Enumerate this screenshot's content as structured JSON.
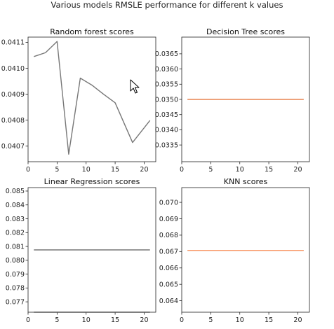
{
  "figure": {
    "suptitle": "Various models RMSLE performance for different k values"
  },
  "chart_data": [
    {
      "type": "line",
      "title": "Random forest scores",
      "xlabel": "",
      "ylabel": "",
      "xlim": [
        0,
        22
      ],
      "ylim": [
        0.04064,
        0.04112
      ],
      "xticks": [
        0,
        5,
        10,
        15,
        20
      ],
      "yticks": [
        0.0407,
        0.0408,
        0.0409,
        0.041,
        0.0411
      ],
      "ytick_labels": [
        "0.0407",
        "0.0408",
        "0.0409",
        "0.0410",
        "0.0411"
      ],
      "grid": false,
      "series": [
        {
          "color": "#777777",
          "x": [
            1,
            3,
            5,
            7,
            9,
            11,
            13,
            15,
            18,
            21
          ],
          "y": [
            0.041045,
            0.04106,
            0.041103,
            0.040669,
            0.040962,
            0.040935,
            0.0409,
            0.040867,
            0.040714,
            0.040799
          ]
        }
      ]
    },
    {
      "type": "line",
      "title": "Decision Tree scores",
      "xlabel": "",
      "ylabel": "",
      "xlim": [
        0,
        22
      ],
      "ylim": [
        0.03295,
        0.03705
      ],
      "xticks": [
        0,
        5,
        10,
        15,
        20
      ],
      "yticks": [
        0.0335,
        0.034,
        0.0345,
        0.035,
        0.0355,
        0.036,
        0.0365
      ],
      "ytick_labels": [
        "0.0335",
        "0.0340",
        "0.0345",
        "0.0350",
        "0.0355",
        "0.0360",
        "0.0365"
      ],
      "grid": false,
      "series": [
        {
          "color": "#777777",
          "x": [
            1,
            21
          ],
          "y": [
            0.035,
            0.035
          ]
        },
        {
          "color": "#ff9966",
          "x": [
            1,
            21
          ],
          "y": [
            0.035,
            0.035
          ]
        }
      ]
    },
    {
      "type": "line",
      "title": "Linear Regression scores",
      "xlabel": "",
      "ylabel": "",
      "xlim": [
        0,
        22
      ],
      "ylim": [
        0.07625,
        0.08525
      ],
      "xticks": [
        0,
        5,
        10,
        15,
        20
      ],
      "yticks": [
        0.077,
        0.078,
        0.079,
        0.08,
        0.081,
        0.082,
        0.083,
        0.084,
        0.085
      ],
      "ytick_labels": [
        "0.077",
        "0.078",
        "0.079",
        "0.080",
        "0.081",
        "0.082",
        "0.083",
        "0.084",
        "0.085"
      ],
      "grid": false,
      "series": [
        {
          "color": "#777777",
          "x": [
            1,
            21
          ],
          "y": [
            0.08075,
            0.08075
          ]
        },
        {
          "color": "#555555",
          "x": [
            1,
            21
          ],
          "y": [
            0.07625,
            0.07625
          ]
        }
      ]
    },
    {
      "type": "line",
      "title": "KNN scores",
      "xlabel": "",
      "ylabel": "",
      "xlim": [
        0,
        22
      ],
      "ylim": [
        0.0633,
        0.0709
      ],
      "xticks": [
        0,
        5,
        10,
        15,
        20
      ],
      "yticks": [
        0.064,
        0.065,
        0.066,
        0.067,
        0.068,
        0.069,
        0.07
      ],
      "ytick_labels": [
        "0.064",
        "0.065",
        "0.066",
        "0.067",
        "0.068",
        "0.069",
        "0.070"
      ],
      "grid": false,
      "series": [
        {
          "color": "#777777",
          "x": [
            1,
            21
          ],
          "y": [
            0.06707,
            0.06707
          ]
        },
        {
          "color": "#ff9966",
          "x": [
            1,
            21
          ],
          "y": [
            0.06707,
            0.06707
          ]
        }
      ]
    }
  ]
}
